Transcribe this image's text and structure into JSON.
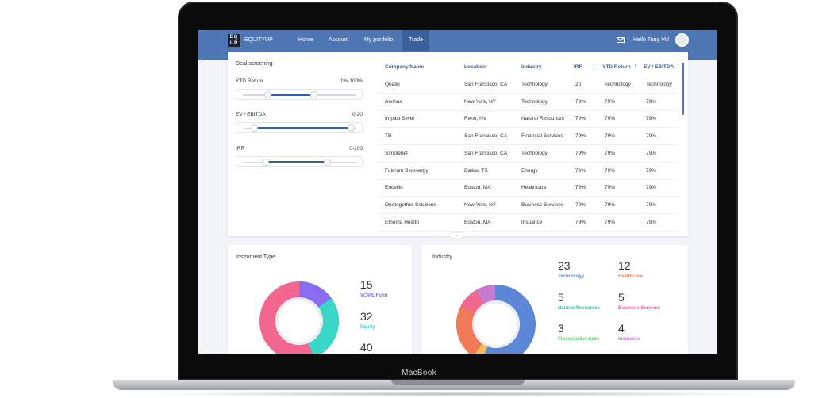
{
  "device_label": "MacBook",
  "nav": {
    "logo_mark": "EQ UP",
    "logo_text": "EQUITYUP",
    "items": [
      "Home",
      "Account",
      "My portfolio",
      "Trade"
    ],
    "active": "Trade",
    "greeting": "Hello Tung Vo!"
  },
  "deal": {
    "title": "Deal screening",
    "filters": [
      {
        "label": "YTD Return",
        "range": "1%-100%",
        "fill_start": 0.22,
        "fill_end": 0.62
      },
      {
        "label": "EV / EBITDA",
        "range": "0-20",
        "fill_start": 0.1,
        "fill_end": 0.95
      },
      {
        "label": "IRR",
        "range": "0-100",
        "fill_start": 0.2,
        "fill_end": 0.74
      }
    ],
    "columns": [
      "Company Name",
      "Location",
      "Industry",
      "IRR",
      "YTD Return",
      "EV / EBITDA"
    ],
    "rows": [
      [
        "Qualio",
        "San Francisco, CA",
        "Technology",
        "20",
        "Technology",
        "Technology"
      ],
      [
        "Arvinas",
        "New York, NY",
        "Technology",
        "79%",
        "79%",
        "79%"
      ],
      [
        "Impact Silver",
        "Reno, NV",
        "Natural Resources",
        "79%",
        "79%",
        "79%"
      ],
      [
        "Till",
        "San Francisco, CA",
        "Financial Services",
        "79%",
        "79%",
        "79%"
      ],
      [
        "Simplebet",
        "San Francisco, CA",
        "Technology",
        "79%",
        "79%",
        "79%"
      ],
      [
        "Fulcrum Bioenergy",
        "Dallas, TX",
        "Energy",
        "79%",
        "79%",
        "79%"
      ],
      [
        "Encellin",
        "Boston, MA",
        "Healthcare",
        "79%",
        "79%",
        "79%"
      ],
      [
        "Onetogether Solutions",
        "New York, NY",
        "Business Services",
        "79%",
        "79%",
        "79%"
      ],
      [
        "Ethema Health",
        "Boston, MA",
        "Insuance",
        "79%",
        "79%",
        "79%"
      ]
    ]
  },
  "instrument": {
    "title": "Instrument Type",
    "items": [
      {
        "value": "15",
        "label": "VC/PE Fund",
        "color": "#8b6cf0"
      },
      {
        "value": "32",
        "label": "Equity",
        "color": "#3ad6c7"
      },
      {
        "value": "40",
        "label": "",
        "color": "#f2668f"
      }
    ]
  },
  "industry": {
    "title": "Industry",
    "items": [
      {
        "value": "23",
        "label": "Technology",
        "color": "#5b87d6"
      },
      {
        "value": "12",
        "label": "Healthcare",
        "color": "#f07a55"
      },
      {
        "value": "5",
        "label": "Natural Resources",
        "color": "#2fc7b8"
      },
      {
        "value": "5",
        "label": "Business Services",
        "color": "#f2668f"
      },
      {
        "value": "3",
        "label": "Financial Services",
        "color": "#5fcf7a"
      },
      {
        "value": "4",
        "label": "Insurance",
        "color": "#c77ad0"
      }
    ]
  }
}
